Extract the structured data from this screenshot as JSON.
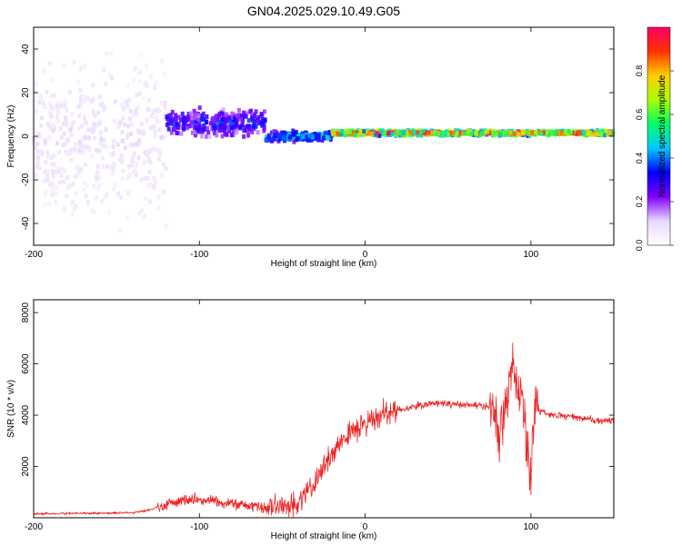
{
  "figure": {
    "title": "GN04.2025.029.10.49.G05"
  },
  "chart_data": [
    {
      "type": "heatmap",
      "xlabel": "Height of straight line (km)",
      "ylabel": "Frequency (Hz)",
      "xlim": [
        -200,
        150
      ],
      "ylim": [
        -50,
        50
      ],
      "x_ticks": [
        -200,
        -100,
        0,
        100
      ],
      "y_ticks": [
        -40,
        -20,
        0,
        20,
        40
      ],
      "colorbar": {
        "label": "Normalized spectral amplitude",
        "range": [
          0,
          1
        ],
        "ticks": [
          "0.0",
          "0.2",
          "0.4",
          "0.6",
          "0.8"
        ],
        "colors": [
          "#ffffff",
          "#e8d8ff",
          "#8000ff",
          "#0000ff",
          "#00c8ff",
          "#00ff66",
          "#aaff00",
          "#ffcc00",
          "#ff3300",
          "#ff0066"
        ]
      },
      "regions": [
        {
          "x_range": [
            -200,
            -120
          ],
          "freq_center": 0,
          "freq_spread": 50,
          "amplitude": 0.1
        },
        {
          "x_range": [
            -120,
            -60
          ],
          "freq_center": 6,
          "freq_spread": 8,
          "amplitude": 0.35
        },
        {
          "x_range": [
            -60,
            -20
          ],
          "freq_center": 0,
          "freq_spread": 3,
          "amplitude": 0.5
        },
        {
          "x_range": [
            -20,
            150
          ],
          "freq_center": 1.5,
          "freq_spread": 1.5,
          "amplitude": 0.9
        }
      ],
      "grid": false
    },
    {
      "type": "line",
      "xlabel": "Height of straight line (km)",
      "ylabel": "SNR (10 * v/v)",
      "xlim": [
        -200,
        150
      ],
      "ylim": [
        0,
        8500
      ],
      "x_ticks": [
        -200,
        -100,
        0,
        100
      ],
      "y_ticks": [
        2000,
        4000,
        6000,
        8000
      ],
      "line_color": "#ee2222",
      "series": [
        {
          "x": [
            -200,
            -180,
            -160,
            -140,
            -130,
            -120,
            -110,
            -100,
            -90,
            -80,
            -70,
            -60,
            -50,
            -40,
            -35,
            -30,
            -25,
            -20,
            -15,
            -10,
            -5,
            0,
            10,
            20,
            30,
            40,
            50,
            60,
            70,
            75,
            78,
            80,
            85,
            90,
            95,
            100,
            102,
            105,
            110,
            120,
            130,
            140,
            150
          ],
          "values": [
            150,
            170,
            180,
            200,
            300,
            550,
            650,
            700,
            650,
            550,
            450,
            380,
            450,
            600,
            1000,
            1400,
            2000,
            2500,
            3000,
            3200,
            3500,
            3700,
            4000,
            4200,
            4350,
            4450,
            4450,
            4400,
            4350,
            4300,
            4350,
            3000,
            4700,
            6000,
            4500,
            1500,
            4300,
            4200,
            4050,
            4000,
            3900,
            3800,
            3750
          ]
        }
      ],
      "grid": false
    }
  ]
}
